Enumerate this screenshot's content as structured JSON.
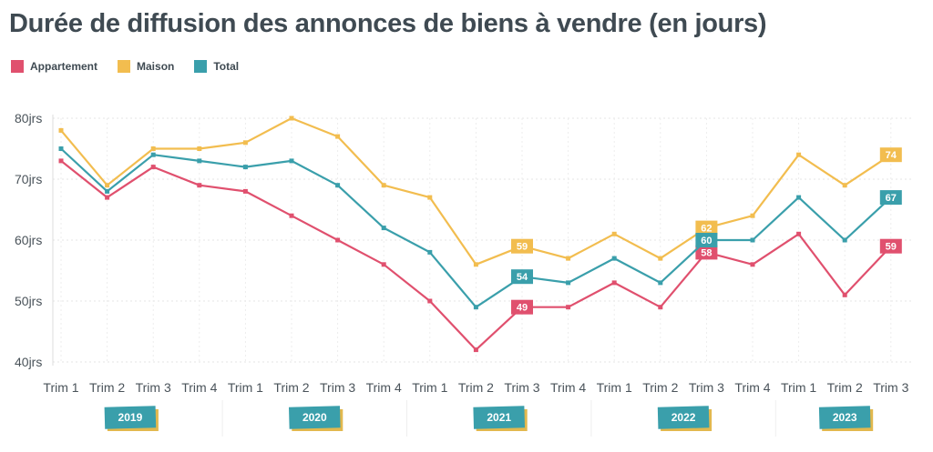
{
  "chart_data": {
    "type": "line",
    "title": "Durée de diffusion des annonces de biens à vendre (en jours)",
    "y_unit_suffix": "jrs",
    "ylim": [
      40,
      80
    ],
    "y_ticks": [
      40,
      50,
      60,
      70,
      80
    ],
    "grid": true,
    "legend_position": "top-left",
    "x": [
      "Trim 1",
      "Trim 2",
      "Trim 3",
      "Trim 4",
      "Trim 1",
      "Trim 2",
      "Trim 3",
      "Trim 4",
      "Trim 1",
      "Trim 2",
      "Trim 3",
      "Trim 4",
      "Trim 1",
      "Trim 2",
      "Trim 3",
      "Trim 4",
      "Trim 1",
      "Trim 2",
      "Trim 3"
    ],
    "year_groups": [
      {
        "label": "2019",
        "start": 0,
        "end": 3
      },
      {
        "label": "2020",
        "start": 4,
        "end": 7
      },
      {
        "label": "2021",
        "start": 8,
        "end": 11
      },
      {
        "label": "2022",
        "start": 12,
        "end": 15
      },
      {
        "label": "2023",
        "start": 16,
        "end": 18
      }
    ],
    "series": [
      {
        "name": "Appartement",
        "color": "#e0506e",
        "values": [
          73,
          67,
          72,
          69,
          68,
          64,
          60,
          56,
          50,
          42,
          49,
          49,
          53,
          49,
          58,
          56,
          61,
          51,
          59
        ],
        "labeled_indices": [
          10,
          14,
          18
        ]
      },
      {
        "name": "Maison",
        "color": "#f2bd4f",
        "values": [
          78,
          69,
          75,
          75,
          76,
          80,
          77,
          69,
          67,
          56,
          59,
          57,
          61,
          57,
          62,
          64,
          74,
          69,
          74
        ],
        "labeled_indices": [
          10,
          14,
          18
        ]
      },
      {
        "name": "Total",
        "color": "#3a9fab",
        "values": [
          75,
          68,
          74,
          73,
          72,
          73,
          69,
          62,
          58,
          49,
          54,
          53,
          57,
          53,
          60,
          60,
          67,
          60,
          67
        ],
        "labeled_indices": [
          10,
          14,
          18
        ]
      }
    ]
  }
}
